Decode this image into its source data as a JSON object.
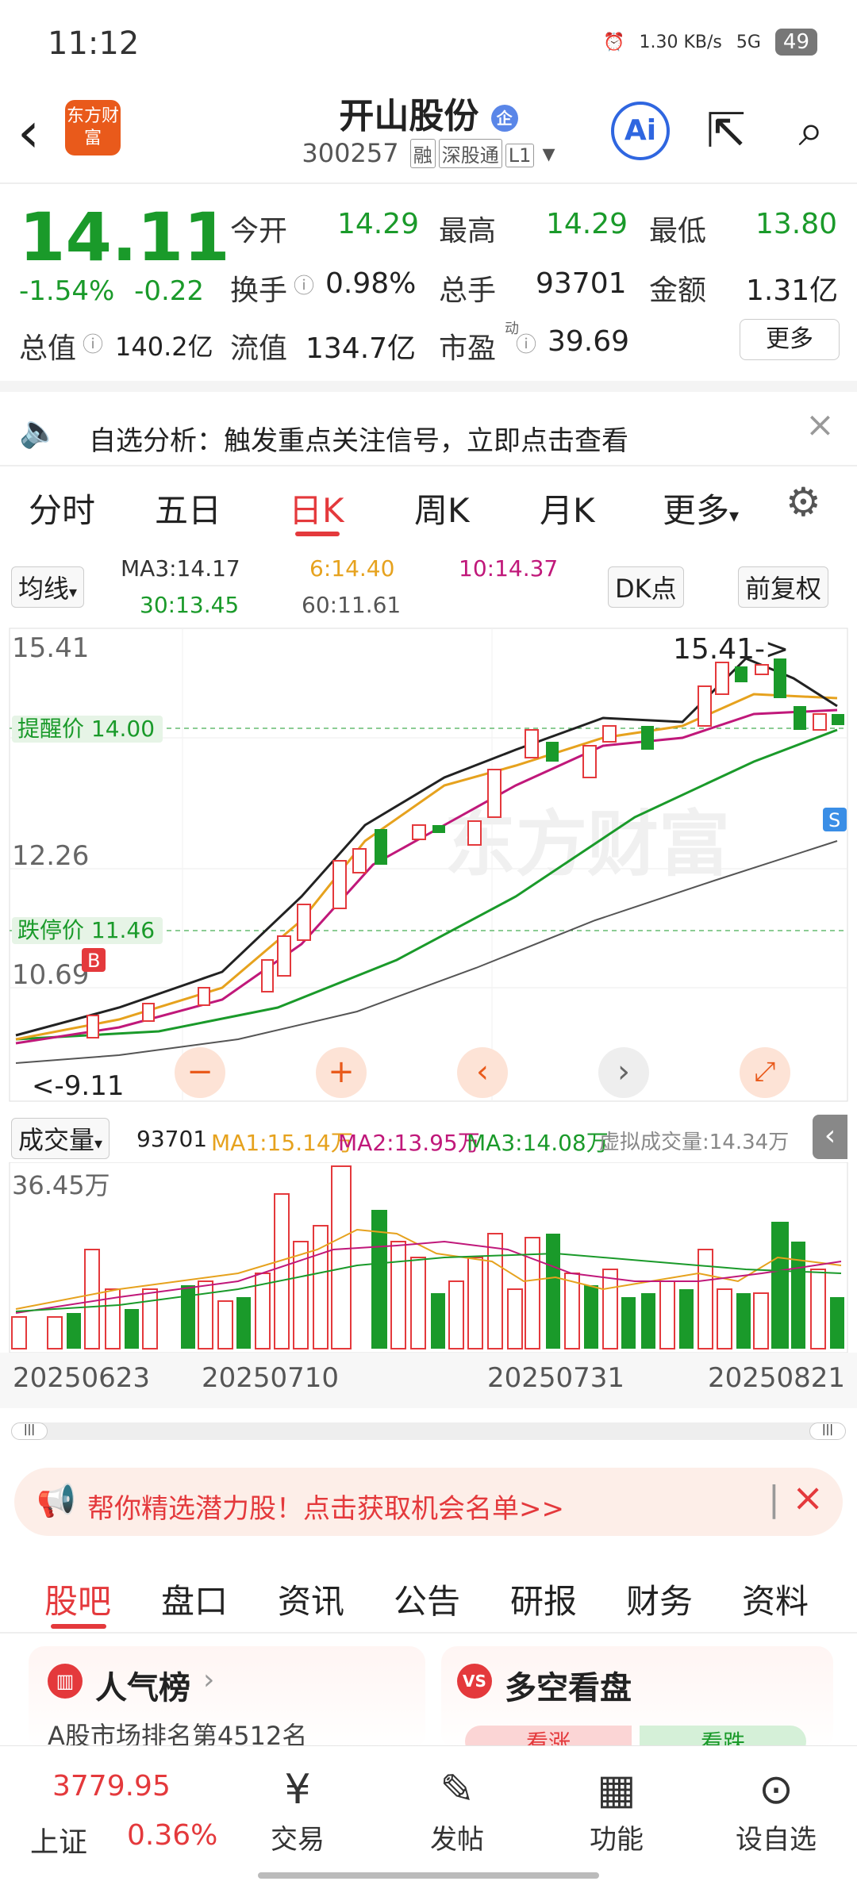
{
  "status": {
    "time": "11:12",
    "net_speed": "1.30 KB/s",
    "signal": "5G",
    "battery": "49"
  },
  "header": {
    "logo_text": "东方财富",
    "stock_name": "开山股份",
    "corp_badge": "企",
    "stock_code": "300257",
    "tags": [
      "融",
      "深股通",
      "L1"
    ],
    "ai_label": "Ai"
  },
  "quote": {
    "price": "14.11",
    "change_pct": "-1.54%",
    "change_amt": "-0.22",
    "open_label": "今开",
    "open": "14.29",
    "high_label": "最高",
    "high": "14.29",
    "low_label": "最低",
    "low": "13.80",
    "turnover_label": "换手",
    "turnover": "0.98%",
    "volume_label": "总手",
    "volume": "93701",
    "amount_label": "金额",
    "amount": "1.31亿",
    "mktcap_label": "总值",
    "mktcap": "140.2亿",
    "float_label": "流值",
    "float_val": "134.7亿",
    "pe_label": "市盈",
    "pe_sup": "动",
    "pe": "39.69",
    "more_label": "更多"
  },
  "notice": {
    "text": "自选分析：触发重点关注信号，立即点击查看"
  },
  "chart_tabs": {
    "items": [
      "分时",
      "五日",
      "日K",
      "周K",
      "月K",
      "更多"
    ],
    "active": "日K"
  },
  "chart_toolbar": {
    "ma_select": "均线",
    "ma3": "MA3:14.17",
    "ma6": "6:14.40",
    "ma10": "10:14.37",
    "ma30": "30:13.45",
    "ma60": "60:11.61",
    "dk_btn": "DK点",
    "adjust_btn": "前复权"
  },
  "kline": {
    "price_high_label": "15.41",
    "price_mid_label": "12.26",
    "price_low2_label": "10.69",
    "max_marker": "15.41->",
    "min_marker": "<-9.11",
    "alert_label": "提醒价 14.00",
    "limit_down_label": "跌停价 11.46",
    "watermark": "东方财富",
    "b_marker": "B",
    "s_marker": "S"
  },
  "volume_bar": {
    "select": "成交量",
    "vol": "93701",
    "ma1": "MA1:15.14万",
    "ma2": "MA2:13.95万",
    "ma3": "MA3:14.08万",
    "virtual": "虚拟成交量:14.34万",
    "top_label": "36.45万"
  },
  "dates": [
    "20250623",
    "20250710",
    "20250731",
    "20250821"
  ],
  "banner": {
    "text": "帮你精选潜力股！点击获取机会名单>>"
  },
  "sub_tabs": {
    "items": [
      "股吧",
      "盘口",
      "资讯",
      "公告",
      "研报",
      "财务",
      "资料"
    ],
    "active": "股吧"
  },
  "cards": {
    "left_title": "人气榜",
    "left_sub": "A股市场排名第4512名",
    "right_title": "多空看盘",
    "right_a": "看涨",
    "right_b": "看跌"
  },
  "bottom_bar": {
    "index_value": "3779.95",
    "index_name": "上证",
    "index_pct": "0.36%",
    "items": [
      "交易",
      "发帖",
      "功能",
      "设自选"
    ]
  },
  "colors": {
    "up": "#e4393c",
    "down": "#1a9a2a",
    "accent": "#e95a1b"
  },
  "chart_data": {
    "type": "candlestick",
    "price_axis": [
      9.11,
      10.69,
      12.26,
      15.41
    ],
    "ma_lines": [
      "MA3",
      "MA6",
      "MA10",
      "MA30",
      "MA60"
    ],
    "last_close": 14.11
  }
}
